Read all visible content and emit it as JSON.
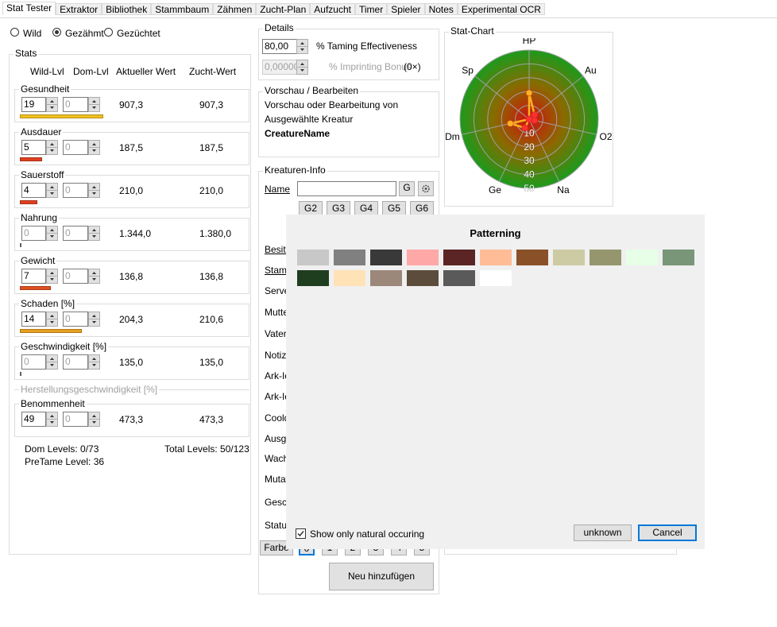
{
  "tabs": [
    "Stat Tester",
    "Extraktor",
    "Bibliothek",
    "Stammbaum",
    "Zähmen",
    "Zucht-Plan",
    "Aufzucht",
    "Timer",
    "Spieler",
    "Notes",
    "Experimental OCR"
  ],
  "mode": {
    "options": [
      "Wild",
      "Gezähmt",
      "Gezüchtet"
    ],
    "selected_index": 1
  },
  "stats": {
    "title": "Stats",
    "headers": [
      "Wild-Lvl",
      "Dom-Lvl",
      "Aktueller Wert",
      "Zucht-Wert"
    ],
    "rows": [
      {
        "name": "Gesundheit",
        "wild": 19,
        "dom": 0,
        "current": "907,3",
        "breed": "907,3",
        "bar_color": "#f0c020"
      },
      {
        "name": "Ausdauer",
        "wild": 5,
        "dom": 0,
        "current": "187,5",
        "breed": "187,5",
        "bar_color": "#e04020"
      },
      {
        "name": "Sauerstoff",
        "wild": 4,
        "dom": 0,
        "current": "210,0",
        "breed": "210,0",
        "bar_color": "#e04020"
      },
      {
        "name": "Nahrung",
        "wild": 0,
        "dom": 0,
        "current": "1.344,0",
        "breed": "1.380,0",
        "bar_color": "#606060"
      },
      {
        "name": "Gewicht",
        "wild": 7,
        "dom": 0,
        "current": "136,8",
        "breed": "136,8",
        "bar_color": "#e05020"
      },
      {
        "name": "Schaden [%]",
        "wild": 14,
        "dom": 0,
        "current": "204,3",
        "breed": "210,6",
        "bar_color": "#e8a020"
      },
      {
        "name": "Geschwindigkeit [%]",
        "wild": 0,
        "dom": 0,
        "current": "135,0",
        "breed": "135,0",
        "bar_color": "#606060"
      },
      {
        "name": "Benommenheit",
        "wild": 49,
        "dom": 0,
        "current": "473,3",
        "breed": "473,3",
        "bar_color": null
      }
    ],
    "disabled_row": "Herstellungsgeschwindigkeit [%]",
    "dom_levels": "Dom Levels: 0/73",
    "total_levels": "Total Levels: 50/123",
    "pretame": "PreTame Level: 36"
  },
  "details": {
    "title": "Details",
    "taming_value": "80,00",
    "taming_label": "% Taming Effectiveness",
    "imprinting_value": "0,00000",
    "imprinting_label": "% Imprinting Bonus",
    "imprinting_mult": "(0×)"
  },
  "preview": {
    "title": "Vorschau / Bearbeiten",
    "lines": [
      "Vorschau oder Bearbeitung von",
      "Ausgewählte Kreatur"
    ],
    "name": "CreatureName"
  },
  "creature_info": {
    "title": "Kreaturen-Info",
    "name_label": "Name",
    "g_button": "G",
    "generations": [
      "G2",
      "G3",
      "G4",
      "G5",
      "G6"
    ],
    "labels": [
      "Besitz",
      "Stamm",
      "Serve",
      "Mutte",
      "Vater",
      "Notiz",
      "Ark-Id",
      "Ark-Id",
      "Coold",
      "Ausge",
      "Wach",
      "Mutat",
      "Gesch",
      "Status"
    ],
    "colors_button": "Farbe",
    "color_buttons": [
      "0",
      "1",
      "2",
      "3",
      "4",
      "5"
    ],
    "add_button": "Neu hinzufügen"
  },
  "stat_chart": {
    "title": "Stat-Chart",
    "axes": [
      "HP",
      "Au",
      "O2",
      "Na",
      "Ge",
      "Dm",
      "Sp"
    ],
    "rlim": [
      0,
      50
    ],
    "rings": [
      10,
      20,
      30,
      40,
      50
    ]
  },
  "dialog": {
    "title": "Patterning",
    "swatches": [
      "#c8c8c8",
      "#808080",
      "#393939",
      "#ffa8a8",
      "#5b2525",
      "#ffbc97",
      "#8a5129",
      "#cdcba4",
      "#96966e",
      "#e6ffe6",
      "#799679",
      "#1f3d1f",
      "#ffe2b6",
      "#9b887b",
      "#5b4c3c",
      "#5a5a5a",
      "#ffffff"
    ],
    "checkbox_label": "Show only natural occuring",
    "checkbox_checked": true,
    "buttons": [
      "unknown",
      "Cancel"
    ]
  }
}
